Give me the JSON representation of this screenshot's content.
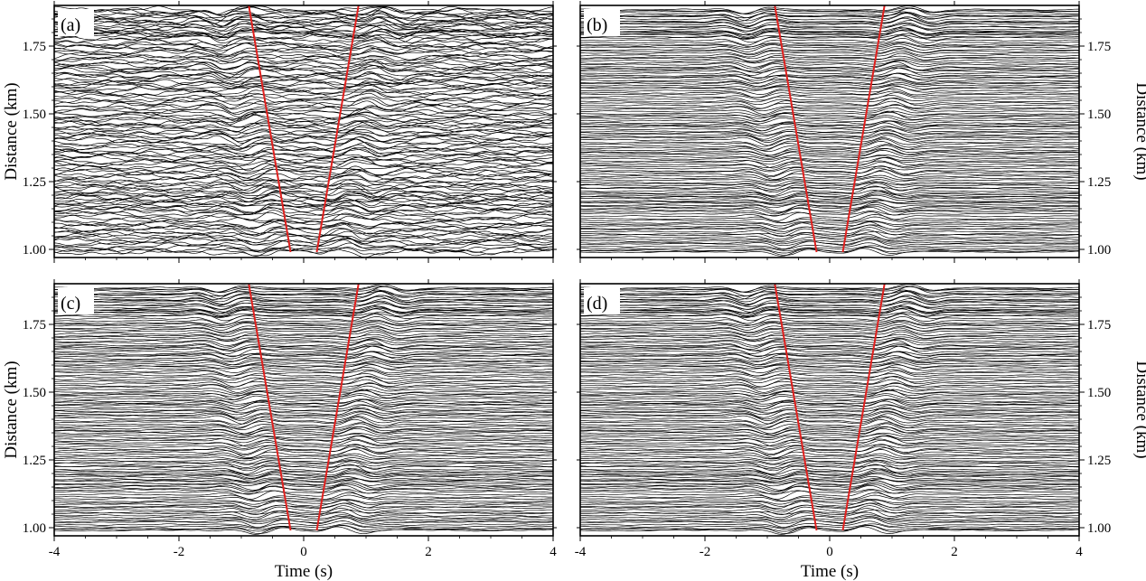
{
  "figure": {
    "panel_labels": [
      "(a)",
      "(b)",
      "(c)",
      "(d)"
    ],
    "xlabel": "Time (s)",
    "ylabel": "Distance (km)"
  },
  "colors": {
    "traces": "#000000",
    "moveout_lines": "#e0201e",
    "frame": "#000000",
    "background": "#ffffff"
  },
  "chart_data": [
    {
      "type": "line",
      "panel": "(a)",
      "description_of_series": "seismic waveform traces",
      "xlim": [
        -4,
        4
      ],
      "ylim": [
        0.97,
        1.9
      ],
      "xticks": [
        "-4",
        "-2",
        "0",
        "2",
        "4"
      ],
      "xtick_values": [
        -4,
        -2,
        0,
        2,
        4
      ],
      "yticks": [
        "1.00",
        "1.25",
        "1.50",
        "1.75"
      ],
      "ytick_values": [
        1.0,
        1.25,
        1.5,
        1.75
      ],
      "xlabel": "",
      "ylabel": "Distance (km)",
      "noise_level": 0.9,
      "red_lines": [
        {
          "x": [
            -0.21,
            -0.88
          ],
          "y": [
            0.99,
            1.9
          ]
        },
        {
          "x": [
            0.21,
            0.88
          ],
          "y": [
            0.99,
            1.9
          ]
        }
      ]
    },
    {
      "type": "line",
      "panel": "(b)",
      "xlim": [
        -4,
        4
      ],
      "ylim": [
        0.97,
        1.9
      ],
      "xticks": [
        "-4",
        "-2",
        "0",
        "2",
        "4"
      ],
      "xtick_values": [
        -4,
        -2,
        0,
        2,
        4
      ],
      "yticks": [
        "1.00",
        "1.25",
        "1.50",
        "1.75"
      ],
      "ytick_values": [
        1.0,
        1.25,
        1.5,
        1.75
      ],
      "xlabel": "",
      "ylabel": "Distance (km)",
      "noise_level": 0.18,
      "red_lines": [
        {
          "x": [
            -0.21,
            -0.88
          ],
          "y": [
            0.99,
            1.9
          ]
        },
        {
          "x": [
            0.21,
            0.88
          ],
          "y": [
            0.99,
            1.9
          ]
        }
      ]
    },
    {
      "type": "line",
      "panel": "(c)",
      "xlim": [
        -4,
        4
      ],
      "ylim": [
        0.97,
        1.9
      ],
      "xticks": [
        "-4",
        "-2",
        "0",
        "2",
        "4"
      ],
      "xtick_values": [
        -4,
        -2,
        0,
        2,
        4
      ],
      "yticks": [
        "1.00",
        "1.25",
        "1.50",
        "1.75"
      ],
      "ytick_values": [
        1.0,
        1.25,
        1.5,
        1.75
      ],
      "xlabel": "Time (s)",
      "ylabel": "Distance (km)",
      "noise_level": 0.22,
      "red_lines": [
        {
          "x": [
            -0.21,
            -0.88
          ],
          "y": [
            0.99,
            1.9
          ]
        },
        {
          "x": [
            0.21,
            0.88
          ],
          "y": [
            0.99,
            1.9
          ]
        }
      ]
    },
    {
      "type": "line",
      "panel": "(d)",
      "xlim": [
        -4,
        4
      ],
      "ylim": [
        0.97,
        1.9
      ],
      "xticks": [
        "-4",
        "-2",
        "0",
        "2",
        "4"
      ],
      "xtick_values": [
        -4,
        -2,
        0,
        2,
        4
      ],
      "yticks": [
        "1.00",
        "1.25",
        "1.50",
        "1.75"
      ],
      "ytick_values": [
        1.0,
        1.25,
        1.5,
        1.75
      ],
      "xlabel": "Time (s)",
      "ylabel": "Distance (km)",
      "noise_level": 0.18,
      "red_lines": [
        {
          "x": [
            -0.21,
            -0.88
          ],
          "y": [
            0.99,
            1.9
          ]
        },
        {
          "x": [
            0.21,
            0.88
          ],
          "y": [
            0.99,
            1.9
          ]
        }
      ]
    }
  ]
}
